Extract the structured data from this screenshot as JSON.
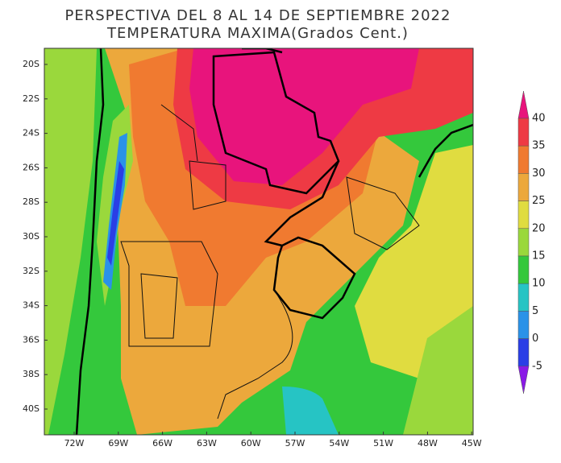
{
  "title": [
    "PERSPECTIVA DEL 8 AL 14 DE SEPTIEMBRE 2022",
    "TEMPERATURA MAXIMA(Grados Cent.)"
  ],
  "lat_labels": [
    "20S",
    "22S",
    "24S",
    "26S",
    "28S",
    "30S",
    "32S",
    "34S",
    "36S",
    "38S",
    "40S"
  ],
  "lon_labels": [
    "72W",
    "69W",
    "66W",
    "63W",
    "60W",
    "57W",
    "54W",
    "51W",
    "48W",
    "45W"
  ],
  "colorbar": {
    "labels": [
      40,
      35,
      30,
      25,
      20,
      15,
      10,
      5,
      0,
      -5
    ],
    "colors": [
      "#e8147c",
      "#ee3a44",
      "#f07a30",
      "#eca83c",
      "#e0dc40",
      "#9ad83c",
      "#34c83c",
      "#26c4c4",
      "#2a92e8",
      "#2a3ee6",
      "#8a1ae6"
    ]
  }
}
